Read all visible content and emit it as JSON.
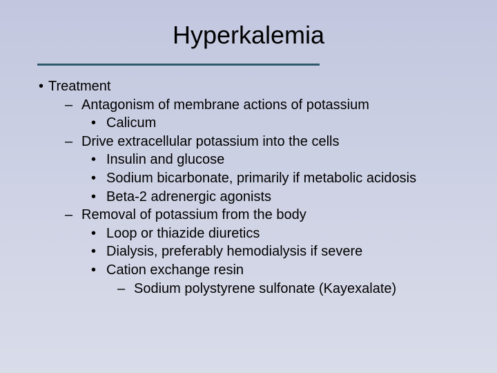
{
  "title": {
    "text": "Hyperkalemia",
    "fontsize": 36,
    "color": "#000000"
  },
  "divider": {
    "color": "#2f5a6e",
    "height": 3
  },
  "background": {
    "gradient_from": "#c2c7df",
    "gradient_to": "#d9dce9"
  },
  "body": {
    "fontsize": 20,
    "color": "#000000",
    "line_height": 1.28
  },
  "content": {
    "items": [
      {
        "level": 0,
        "bullet": "•",
        "bclass": "b-dot",
        "text": "Treatment"
      },
      {
        "level": 1,
        "bullet": "–",
        "bclass": "b-dash",
        "text": "Antagonism of membrane actions of potassium"
      },
      {
        "level": 2,
        "bullet": "•",
        "bclass": "b-dot2",
        "text": "Calicum"
      },
      {
        "level": 1,
        "bullet": "–",
        "bclass": "b-dash",
        "text": "Drive extracellular potassium into the cells"
      },
      {
        "level": 2,
        "bullet": "•",
        "bclass": "b-dot2",
        "text": "Insulin and glucose"
      },
      {
        "level": 2,
        "bullet": "•",
        "bclass": "b-dot2",
        "text": "Sodium bicarbonate, primarily if metabolic acidosis"
      },
      {
        "level": 2,
        "bullet": "•",
        "bclass": "b-dot2",
        "text": "Beta-2 adrenergic agonists"
      },
      {
        "level": 1,
        "bullet": "–",
        "bclass": "b-dash",
        "text": "Removal of potassium from the body"
      },
      {
        "level": 2,
        "bullet": "•",
        "bclass": "b-dot2",
        "text": "Loop or thiazide diuretics"
      },
      {
        "level": 2,
        "bullet": "•",
        "bclass": "b-dot2",
        "text": "Dialysis, preferably hemodialysis if severe"
      },
      {
        "level": 2,
        "bullet": "•",
        "bclass": "b-dot2",
        "text": "Cation exchange resin"
      },
      {
        "level": 3,
        "bullet": "–",
        "bclass": "b-dash",
        "text": "Sodium polystyrene sulfonate (Kayexalate)"
      }
    ]
  }
}
